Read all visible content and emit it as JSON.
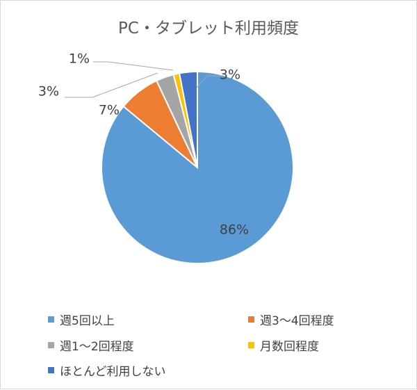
{
  "chart_data": {
    "type": "pie",
    "title": "PC・タブレット利用頻度",
    "categories": [
      "週5回以上",
      "週3～4回程度",
      "週1～2回程度",
      "月数回程度",
      "ほとんど利用しない"
    ],
    "values": [
      86,
      7,
      3,
      1,
      3
    ],
    "data_labels": [
      "86%",
      "7%",
      "3%",
      "1%",
      "3%"
    ],
    "colors": [
      "#5b9bd5",
      "#ed7d31",
      "#a5a5a5",
      "#ffc000",
      "#4472c4"
    ],
    "legend_position": "bottom"
  }
}
